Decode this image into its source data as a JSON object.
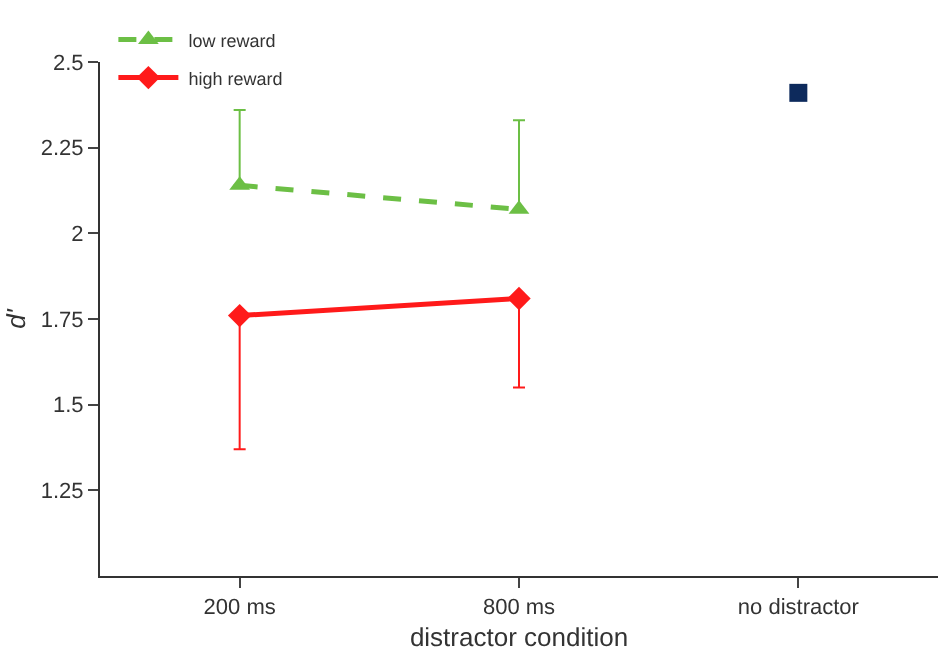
{
  "chart_data": {
    "type": "line",
    "xlabel": "distractor condition",
    "ylabel": "d'",
    "categories": [
      "200 ms",
      "800 ms",
      "no distractor"
    ],
    "series": [
      {
        "name": "low reward",
        "color": "#6cbf45",
        "values": [
          2.14,
          2.07,
          null
        ],
        "marker": "triangle",
        "line_style": "dashed",
        "errors": [
          [
            2.14,
            2.36
          ],
          [
            2.07,
            2.33
          ],
          null
        ]
      },
      {
        "name": "high reward",
        "color": "#ff1a1a",
        "values": [
          1.76,
          1.81,
          null
        ],
        "marker": "diamond",
        "line_style": "solid",
        "errors": [
          [
            1.37,
            1.76
          ],
          [
            1.55,
            1.81
          ],
          null
        ]
      },
      {
        "type": "scatter",
        "color": "#0d2a5c",
        "values": [
          null,
          null,
          2.41
        ],
        "marker": "square"
      }
    ],
    "ylim": [
      1.0,
      2.5
    ],
    "yticks": [
      1.25,
      1.5,
      1.75,
      2,
      2.25,
      2.5
    ],
    "legend": "top left"
  }
}
